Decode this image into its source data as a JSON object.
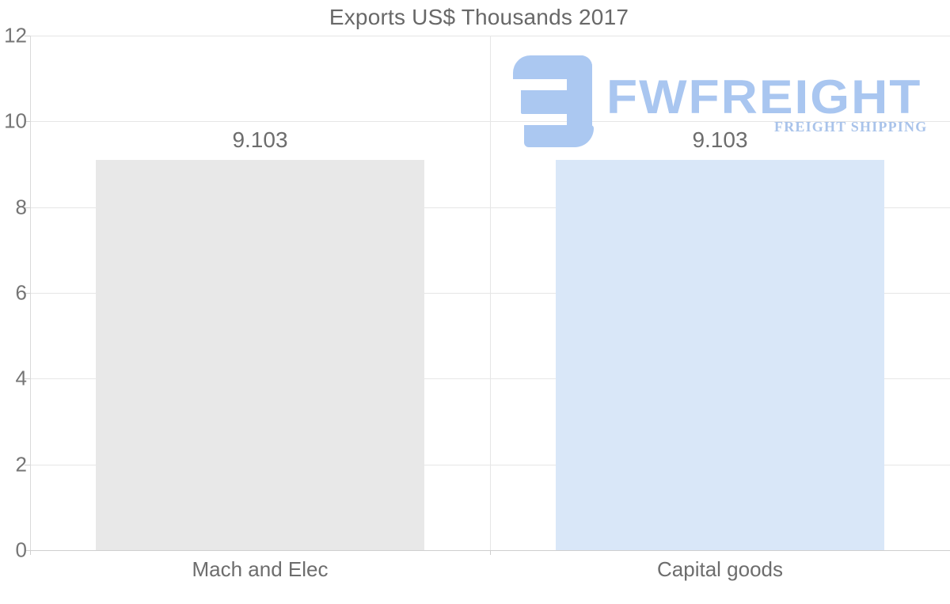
{
  "title": "Exports US$ Thousands 2017",
  "watermark": {
    "brand": "FWFREIGHT",
    "tagline": "FREIGHT SHIPPING"
  },
  "chart_data": {
    "type": "bar",
    "title": "Exports US$ Thousands 2017",
    "categories": [
      "Mach and Elec",
      "Capital goods"
    ],
    "values": [
      9.103,
      9.103
    ],
    "value_labels": [
      "9.103",
      "9.103"
    ],
    "series_colors": [
      "#e8e8e8",
      "#d9e7f8"
    ],
    "ylim": [
      0,
      12
    ],
    "yticks": [
      0,
      2,
      4,
      6,
      8,
      10,
      12
    ],
    "grid": true,
    "legend": false,
    "xlabel": "",
    "ylabel": ""
  },
  "colors": {
    "title_text": "#686868",
    "tick_text": "#757575",
    "label_text": "#6d6d6d",
    "gridline": "#e6e6e6",
    "axis_line": "#cfcfcf",
    "bar_gray": "#e8e8e8",
    "bar_blue": "#d9e7f8",
    "logo_blue": "#a9c6f0",
    "tagline_blue": "#a9c3ea",
    "icon_blue": "#abc8f1"
  }
}
